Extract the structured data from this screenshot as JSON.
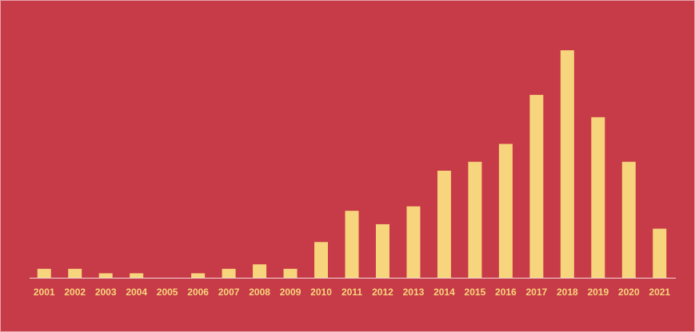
{
  "chart_data": {
    "type": "bar",
    "categories": [
      "2001",
      "2002",
      "2003",
      "2004",
      "2005",
      "2006",
      "2007",
      "2008",
      "2009",
      "2010",
      "2011",
      "2012",
      "2013",
      "2014",
      "2015",
      "2016",
      "2017",
      "2018",
      "2019",
      "2020",
      "2021"
    ],
    "values": [
      2,
      2,
      1,
      1,
      0,
      1,
      2,
      3,
      2,
      8,
      15,
      12,
      16,
      24,
      26,
      30,
      41,
      51,
      36,
      26,
      11
    ],
    "color": "#f7d57c"
  }
}
